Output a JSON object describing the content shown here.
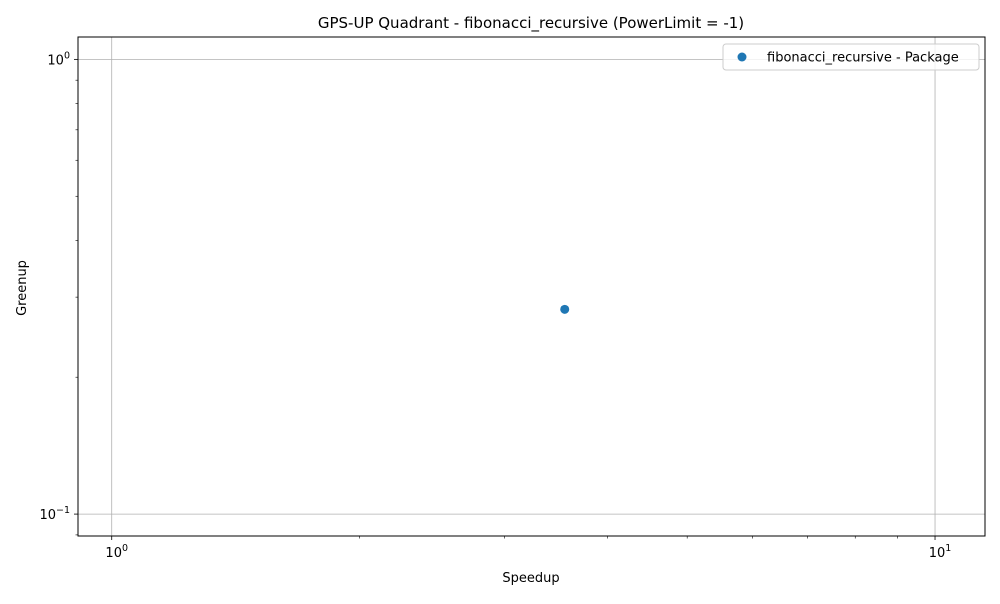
{
  "chart_data": {
    "type": "scatter",
    "title": "GPS-UP Quadrant - fibonacci_recursive (PowerLimit = -1)",
    "xlabel": "Speedup",
    "ylabel": "Greenup",
    "xscale": "log",
    "yscale": "log",
    "xlim": [
      0.91,
      11.5
    ],
    "ylim": [
      0.0895,
      1.12
    ],
    "grid": true,
    "legend_position": "top-right",
    "x_major_ticks": [
      {
        "value": 1,
        "base": "10",
        "exp": "0"
      },
      {
        "value": 10,
        "base": "10",
        "exp": "1"
      }
    ],
    "y_major_ticks": [
      {
        "value": 0.1,
        "base": "10",
        "exp": "−1"
      },
      {
        "value": 1,
        "base": "10",
        "exp": "0"
      }
    ],
    "series": [
      {
        "name": "fibonacci_recursive - Package",
        "color": "#1f77b4",
        "points": [
          {
            "x": 3.55,
            "y": 0.282
          }
        ]
      }
    ]
  }
}
